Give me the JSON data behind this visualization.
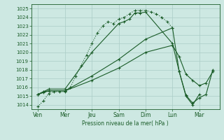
{
  "bg_color": "#cde8e2",
  "grid_color": "#aaccc6",
  "line_color": "#1a5c28",
  "x_labels": [
    "Ven",
    "Mer",
    "Jeu",
    "Sam",
    "Dim",
    "Lun",
    "Mar"
  ],
  "x_tick_pos": [
    0,
    40,
    80,
    120,
    160,
    200,
    240
  ],
  "ylabel_text": "Pression niveau de la mer( hPa )",
  "ylim": [
    1013.5,
    1025.5
  ],
  "yticks": [
    1014,
    1015,
    1016,
    1017,
    1018,
    1019,
    1020,
    1021,
    1022,
    1023,
    1024,
    1025
  ],
  "series": [
    {
      "x": [
        0,
        8,
        16,
        24,
        32,
        40,
        48,
        56,
        64,
        72,
        80,
        88,
        96,
        104,
        112,
        120,
        128,
        136,
        144,
        152,
        160,
        168,
        176,
        184,
        192,
        200
      ],
      "y": [
        1013.8,
        1014.5,
        1015.3,
        1015.5,
        1015.5,
        1015.5,
        1016.0,
        1017.3,
        1018.5,
        1019.7,
        1021.0,
        1022.2,
        1023.0,
        1023.5,
        1023.3,
        1023.8,
        1024.0,
        1024.4,
        1024.8,
        1024.8,
        1024.8,
        1024.6,
        1024.4,
        1024.0,
        1023.5,
        1022.8
      ],
      "marker": "+",
      "markersize": 3,
      "linewidth": 0.8,
      "linestyle": ":"
    },
    {
      "x": [
        0,
        8,
        16,
        40,
        80,
        120,
        160,
        200,
        210,
        220,
        230,
        240,
        250,
        260
      ],
      "y": [
        1015.2,
        1015.5,
        1015.6,
        1015.6,
        1016.8,
        1018.2,
        1020.0,
        1020.8,
        1019.5,
        1017.5,
        1016.8,
        1016.2,
        1016.5,
        1017.8
      ],
      "marker": "+",
      "markersize": 3,
      "linewidth": 0.8,
      "linestyle": "-"
    },
    {
      "x": [
        0,
        8,
        16,
        40,
        80,
        120,
        160,
        200,
        210,
        220,
        230,
        240,
        250,
        260
      ],
      "y": [
        1015.2,
        1015.4,
        1015.6,
        1015.6,
        1017.3,
        1019.2,
        1021.5,
        1022.8,
        1017.8,
        1015.1,
        1014.2,
        1014.8,
        1015.2,
        1018.0
      ],
      "marker": "+",
      "markersize": 3,
      "linewidth": 0.8,
      "linestyle": "-"
    },
    {
      "x": [
        0,
        8,
        16,
        40,
        80,
        120,
        128,
        136,
        144,
        152,
        160,
        200,
        210,
        220,
        230,
        240
      ],
      "y": [
        1015.2,
        1015.5,
        1015.8,
        1015.8,
        1020.0,
        1023.3,
        1023.5,
        1023.8,
        1024.5,
        1024.5,
        1024.6,
        1021.0,
        1017.8,
        1015.0,
        1014.0,
        1015.2
      ],
      "marker": "+",
      "markersize": 3,
      "linewidth": 0.8,
      "linestyle": "-"
    }
  ]
}
